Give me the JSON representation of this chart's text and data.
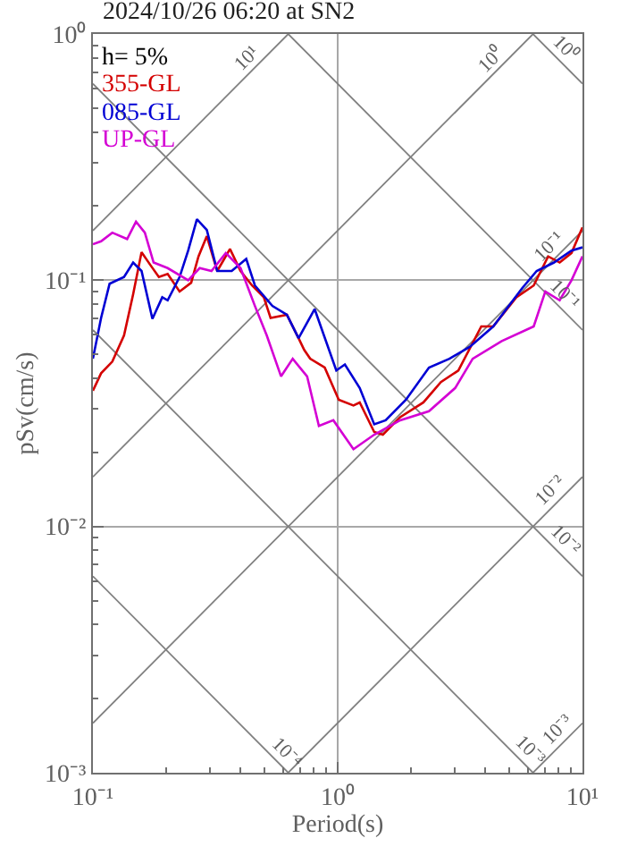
{
  "chart_data": {
    "type": "line",
    "title": "2024/10/26 06:20 at SN2",
    "xlabel": "Period(s)",
    "ylabel": "pSv(cm/s)",
    "log": "xy",
    "grid": true,
    "legend": false,
    "xlim": [
      0.1,
      10
    ],
    "ylim": [
      0.001,
      1
    ],
    "xticks": [
      {
        "value": 0.1,
        "label": "10⁻¹"
      },
      {
        "value": 0.2,
        "label": null
      },
      {
        "value": 0.3,
        "label": null
      },
      {
        "value": 0.4,
        "label": null
      },
      {
        "value": 0.5,
        "label": null
      },
      {
        "value": 0.6,
        "label": null
      },
      {
        "value": 0.7,
        "label": null
      },
      {
        "value": 0.8,
        "label": null
      },
      {
        "value": 0.9,
        "label": null
      },
      {
        "value": 1,
        "label": "10⁰"
      },
      {
        "value": 2,
        "label": null
      },
      {
        "value": 3,
        "label": null
      },
      {
        "value": 4,
        "label": null
      },
      {
        "value": 5,
        "label": null
      },
      {
        "value": 6,
        "label": null
      },
      {
        "value": 7,
        "label": null
      },
      {
        "value": 8,
        "label": null
      },
      {
        "value": 9,
        "label": null
      },
      {
        "value": 10,
        "label": "10¹"
      }
    ],
    "yticks": [
      {
        "value": 0.001,
        "label": "10⁻³"
      },
      {
        "value": 0.002,
        "label": null
      },
      {
        "value": 0.003,
        "label": null
      },
      {
        "value": 0.004,
        "label": null
      },
      {
        "value": 0.005,
        "label": null
      },
      {
        "value": 0.006,
        "label": null
      },
      {
        "value": 0.007,
        "label": null
      },
      {
        "value": 0.008,
        "label": null
      },
      {
        "value": 0.009,
        "label": null
      },
      {
        "value": 0.01,
        "label": "10⁻²"
      },
      {
        "value": 0.02,
        "label": null
      },
      {
        "value": 0.03,
        "label": null
      },
      {
        "value": 0.04,
        "label": null
      },
      {
        "value": 0.05,
        "label": null
      },
      {
        "value": 0.06,
        "label": null
      },
      {
        "value": 0.07,
        "label": null
      },
      {
        "value": 0.08,
        "label": null
      },
      {
        "value": 0.09,
        "label": null
      },
      {
        "value": 0.1,
        "label": "10⁻¹"
      },
      {
        "value": 0.2,
        "label": null
      },
      {
        "value": 0.3,
        "label": null
      },
      {
        "value": 0.4,
        "label": null
      },
      {
        "value": 0.5,
        "label": null
      },
      {
        "value": 0.6,
        "label": null
      },
      {
        "value": 0.7,
        "label": null
      },
      {
        "value": 0.8,
        "label": null
      },
      {
        "value": 0.9,
        "label": null
      },
      {
        "value": 1,
        "label": "10⁰"
      }
    ],
    "series": [
      {
        "x": [
          0.1,
          0.628
        ],
        "values": [
          0.159,
          1
        ],
        "color": "#808080"
      },
      {
        "x": [
          0.1,
          6.28
        ],
        "values": [
          0.0159,
          1
        ],
        "color": "#808080"
      },
      {
        "x": [
          0.1,
          10
        ],
        "values": [
          0.00159,
          0.159
        ],
        "color": "#808080"
      },
      {
        "x": [
          0.628,
          10
        ],
        "values": [
          0.001,
          0.0159
        ],
        "color": "#808080"
      },
      {
        "x": [
          6.28,
          10
        ],
        "values": [
          0.001,
          0.00159
        ],
        "color": "#808080"
      },
      {
        "x": [
          6.28,
          10
        ],
        "values": [
          1,
          0.628
        ],
        "color": "#808080"
      },
      {
        "x": [
          0.628,
          10
        ],
        "values": [
          1,
          0.0628
        ],
        "color": "#808080"
      },
      {
        "x": [
          0.1,
          10
        ],
        "values": [
          0.628,
          0.00628
        ],
        "color": "#808080"
      },
      {
        "x": [
          0.1,
          6.28
        ],
        "values": [
          0.0628,
          0.001
        ],
        "color": "#808080"
      },
      {
        "x": [
          0.1,
          0.628
        ],
        "values": [
          0.00628,
          0.001
        ],
        "color": "#808080"
      },
      {
        "name": "355-GL",
        "color": "#d40000",
        "x": [
          0.1,
          0.108,
          0.12,
          0.134,
          0.146,
          0.158,
          0.172,
          0.186,
          0.202,
          0.226,
          0.252,
          0.27,
          0.292,
          0.322,
          0.363,
          0.401,
          0.447,
          0.499,
          0.532,
          0.62,
          0.692,
          0.73,
          0.772,
          0.885,
          1.01,
          1.16,
          1.23,
          1.41,
          1.53,
          1.8,
          2.24,
          2.64,
          3.11,
          3.86,
          4.32,
          5.37,
          6.32,
          7.24,
          8.07,
          9.02,
          10
        ],
        "values": [
          0.0356,
          0.0419,
          0.0467,
          0.0597,
          0.0877,
          0.13,
          0.115,
          0.103,
          0.106,
          0.09,
          0.0977,
          0.125,
          0.151,
          0.109,
          0.134,
          0.109,
          0.0952,
          0.0853,
          0.0703,
          0.0724,
          0.0582,
          0.0521,
          0.048,
          0.0442,
          0.0327,
          0.031,
          0.0319,
          0.0242,
          0.0236,
          0.0278,
          0.0319,
          0.0386,
          0.043,
          0.0649,
          0.0649,
          0.0853,
          0.0952,
          0.125,
          0.118,
          0.129,
          0.164
        ]
      },
      {
        "name": "085-GL",
        "color": "#0000d4",
        "x": [
          0.1,
          0.108,
          0.117,
          0.134,
          0.146,
          0.158,
          0.175,
          0.192,
          0.202,
          0.226,
          0.245,
          0.266,
          0.292,
          0.322,
          0.369,
          0.423,
          0.459,
          0.541,
          0.62,
          0.692,
          0.805,
          0.987,
          1.07,
          1.23,
          1.41,
          1.57,
          1.9,
          2.36,
          2.86,
          3.46,
          4.32,
          5.66,
          6.5,
          7.65,
          9.02,
          10
        ],
        "values": [
          0.048,
          0.0703,
          0.0968,
          0.103,
          0.118,
          0.109,
          0.0697,
          0.0853,
          0.0829,
          0.103,
          0.132,
          0.177,
          0.16,
          0.109,
          0.109,
          0.122,
          0.0952,
          0.0786,
          0.0724,
          0.0582,
          0.0764,
          0.043,
          0.0455,
          0.0365,
          0.026,
          0.027,
          0.0327,
          0.0442,
          0.048,
          0.0536,
          0.0649,
          0.0926,
          0.109,
          0.118,
          0.132,
          0.136
        ]
      },
      {
        "name": "UP-GL",
        "color": "#d400d4",
        "x": [
          0.1,
          0.108,
          0.12,
          0.138,
          0.15,
          0.163,
          0.177,
          0.202,
          0.245,
          0.273,
          0.305,
          0.349,
          0.401,
          0.459,
          0.513,
          0.587,
          0.655,
          0.75,
          0.838,
          0.96,
          1.16,
          1.41,
          1.8,
          2.36,
          3.02,
          3.56,
          4.68,
          6.32,
          7.05,
          8.07,
          9.02,
          10
        ],
        "values": [
          0.14,
          0.144,
          0.156,
          0.147,
          0.173,
          0.156,
          0.118,
          0.112,
          0.1,
          0.112,
          0.109,
          0.129,
          0.112,
          0.0786,
          0.0597,
          0.0407,
          0.048,
          0.0407,
          0.0256,
          0.027,
          0.0206,
          0.0236,
          0.027,
          0.0294,
          0.0365,
          0.048,
          0.0566,
          0.0649,
          0.09,
          0.0829,
          0.1,
          0.125
        ]
      }
    ],
    "annotations": [
      "h= 5%",
      {
        "text": "10¹",
        "x": 0.445,
        "y": 0.708
      },
      {
        "text": "10⁰",
        "x": 4.41,
        "y": 0.702
      },
      {
        "text": "10⁰",
        "x": 8.07,
        "y": 0.779
      },
      {
        "text": "10⁻¹",
        "x": 7.69,
        "y": 0.1224
      },
      {
        "text": "10⁻¹",
        "x": 8.07,
        "y": 0.0779
      },
      {
        "text": "10⁻²",
        "x": 7.82,
        "y": 0.01245
      },
      {
        "text": "10⁻²",
        "x": 8.07,
        "y": 0.00779
      },
      {
        "text": "10⁻³",
        "x": 8.35,
        "y": 0.00133
      },
      {
        "text": "10⁻³",
        "x": 5.82,
        "y": 0.00108
      },
      {
        "text": "10⁻⁴",
        "x": 0.587,
        "y": 0.00107
      }
    ]
  }
}
